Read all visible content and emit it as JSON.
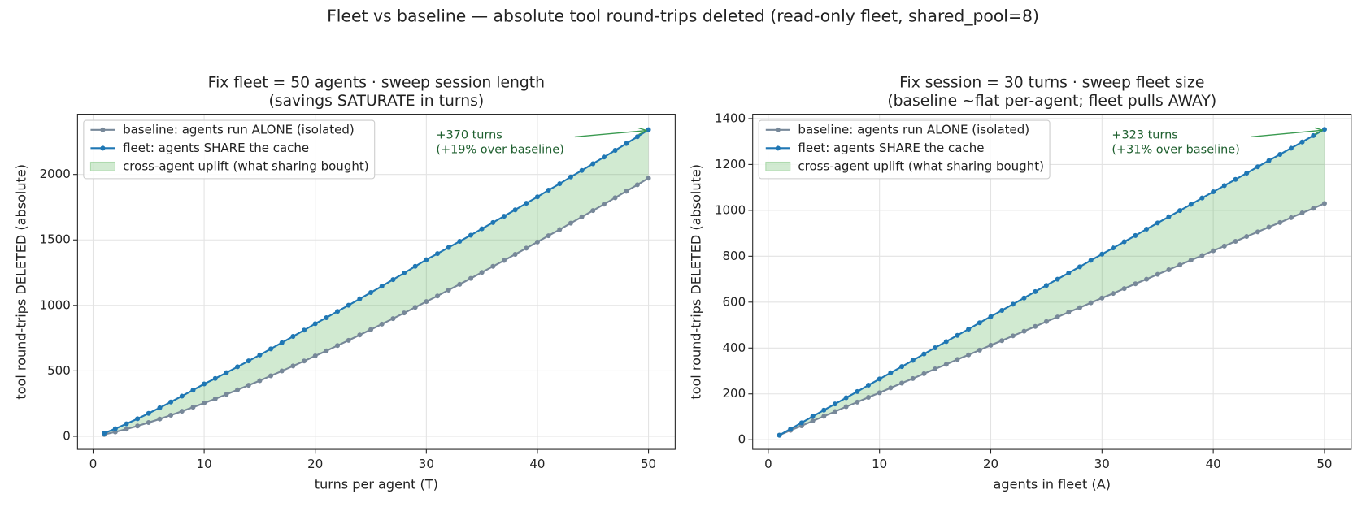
{
  "title": "Fleet vs baseline — absolute tool round-trips deleted (read-only fleet, shared_pool=8)",
  "chart_data": [
    {
      "type": "line",
      "title": [
        "Fix fleet = 50 agents · sweep session length",
        "(savings SATURATE in turns)"
      ],
      "xlabel": "turns per agent  (T)",
      "ylabel": "tool round-trips DELETED (absolute)",
      "x": [
        1,
        2,
        3,
        4,
        5,
        6,
        7,
        8,
        9,
        10,
        11,
        12,
        13,
        14,
        15,
        16,
        17,
        18,
        19,
        20,
        21,
        22,
        23,
        24,
        25,
        26,
        27,
        28,
        29,
        30,
        31,
        32,
        33,
        34,
        35,
        36,
        37,
        38,
        39,
        40,
        41,
        42,
        43,
        44,
        45,
        46,
        47,
        48,
        49,
        50
      ],
      "series": [
        {
          "name": "baseline: agents run ALONE (isolated)",
          "color": "#778899",
          "values": [
            14,
            33,
            55,
            79,
            105,
            132,
            161,
            191,
            222,
            254,
            286,
            320,
            355,
            390,
            425,
            462,
            499,
            537,
            575,
            614,
            653,
            693,
            733,
            774,
            815,
            857,
            899,
            942,
            985,
            1029,
            1072,
            1117,
            1161,
            1206,
            1252,
            1298,
            1343,
            1390,
            1437,
            1484,
            1532,
            1579,
            1628,
            1676,
            1724,
            1773,
            1822,
            1872,
            1921,
            1972
          ]
        },
        {
          "name": "fleet: agents SHARE the cache",
          "color": "#1f77b4",
          "values": [
            24,
            58,
            95,
            134,
            175,
            218,
            262,
            307,
            353,
            400,
            442,
            486,
            531,
            576,
            621,
            668,
            715,
            763,
            811,
            860,
            906,
            954,
            1001,
            1050,
            1098,
            1147,
            1197,
            1247,
            1298,
            1349,
            1395,
            1442,
            1489,
            1536,
            1585,
            1633,
            1681,
            1730,
            1780,
            1829,
            1880,
            1929,
            1981,
            2031,
            2082,
            2133,
            2184,
            2236,
            2288,
            2342
          ]
        }
      ],
      "fill": {
        "name": "cross-agent uplift (what sharing bought)",
        "color": "#2ca02c"
      },
      "annotation": [
        "+370 turns",
        "(+19% over baseline)"
      ],
      "xlim": [
        -1.4,
        52.4
      ],
      "xticks": [
        0,
        10,
        20,
        30,
        40,
        50
      ],
      "ylim": [
        -100,
        2460
      ],
      "yticks": [
        0,
        500,
        1000,
        1500,
        2000
      ],
      "grid": true,
      "legend": "upper left"
    },
    {
      "type": "line",
      "title": [
        "Fix session = 30 turns · sweep fleet size",
        "(baseline ~flat per-agent; fleet pulls AWAY)"
      ],
      "xlabel": "agents in fleet  (A)",
      "ylabel": "tool round-trips DELETED (absolute)",
      "x": [
        1,
        2,
        3,
        4,
        5,
        6,
        7,
        8,
        9,
        10,
        11,
        12,
        13,
        14,
        15,
        16,
        17,
        18,
        19,
        20,
        21,
        22,
        23,
        24,
        25,
        26,
        27,
        28,
        29,
        30,
        31,
        32,
        33,
        34,
        35,
        36,
        37,
        38,
        39,
        40,
        41,
        42,
        43,
        44,
        45,
        46,
        47,
        48,
        49,
        50
      ],
      "series": [
        {
          "name": "baseline: agents run ALONE (isolated)",
          "color": "#778899",
          "values": [
            20,
            41,
            61,
            82,
            102,
            123,
            144,
            164,
            185,
            205,
            226,
            247,
            267,
            288,
            309,
            329,
            350,
            370,
            391,
            412,
            432,
            453,
            473,
            494,
            515,
            535,
            556,
            576,
            597,
            618,
            638,
            659,
            680,
            700,
            721,
            741,
            762,
            783,
            803,
            824,
            844,
            865,
            886,
            906,
            927,
            947,
            968,
            989,
            1009,
            1030
          ]
        },
        {
          "name": "fleet: agents SHARE the cache",
          "color": "#1f77b4",
          "values": [
            20,
            47,
            74,
            102,
            129,
            156,
            183,
            210,
            238,
            265,
            292,
            319,
            346,
            374,
            401,
            428,
            455,
            482,
            510,
            537,
            564,
            591,
            618,
            646,
            673,
            700,
            727,
            754,
            782,
            809,
            836,
            863,
            890,
            918,
            945,
            972,
            999,
            1026,
            1054,
            1081,
            1108,
            1135,
            1162,
            1190,
            1217,
            1244,
            1271,
            1298,
            1326,
            1353
          ]
        }
      ],
      "fill": {
        "name": "cross-agent uplift (what sharing bought)",
        "color": "#2ca02c"
      },
      "annotation": [
        "+323 turns",
        "(+31% over baseline)"
      ],
      "xlim": [
        -1.4,
        52.4
      ],
      "xticks": [
        0,
        10,
        20,
        30,
        40,
        50
      ],
      "ylim": [
        -42,
        1419
      ],
      "yticks": [
        0,
        200,
        400,
        600,
        800,
        1000,
        1200,
        1400
      ],
      "grid": true,
      "legend": "upper left"
    }
  ]
}
